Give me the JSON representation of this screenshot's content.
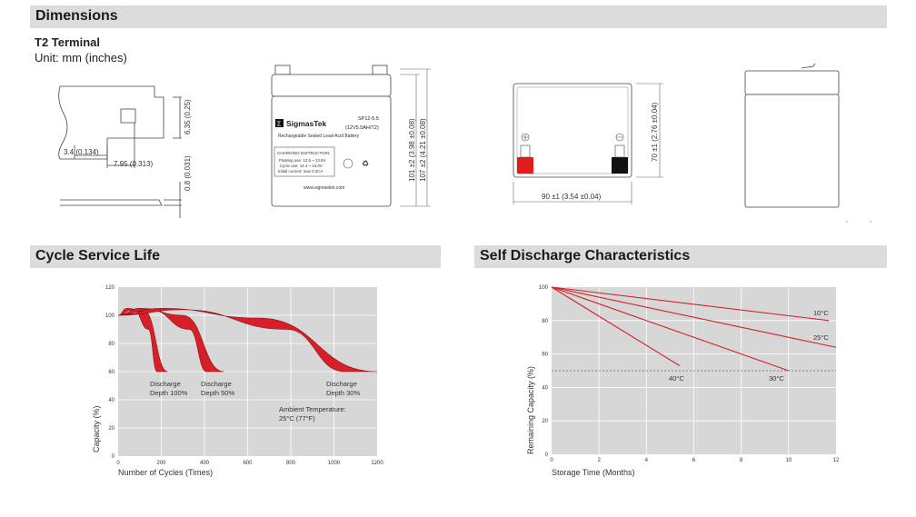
{
  "sections": {
    "dimensions": "Dimensions",
    "cycle": "Cycle Service Life",
    "self_discharge": "Self Discharge Characteristics"
  },
  "terminal": {
    "title": "T2 Terminal",
    "unit": "Unit: mm (inches)",
    "dim_a": "6.35 (0.25)",
    "dim_b": "3.4 (0.134)",
    "dim_c": "7.95 (0.313)",
    "dim_d": "0.8 (0.031)"
  },
  "battery": {
    "brand": "SigmasTek",
    "model": "SP12-5.5",
    "model_sub": "(12V5.5AH/T2)",
    "description": "Rechargeable Sealed Lead-Acid Battery",
    "charging_title": "CHARGING INSTRUCTION",
    "charging_1": "Floating use: 13.5 ~ 13.8V",
    "charging_2": "Cycle use: 14.4 ~ 15.0V",
    "charging_3": "Initial current: max 0.3CA",
    "website": "www.sigmastek.com",
    "height_1": "101 ±2 (3.98 ±0.08)",
    "height_2": "107 ±2 (4.21 ±0.08)",
    "width": "90 ±1 (3.54 ±0.04)",
    "depth": "70 ±1 (2.76 ±0.04)"
  },
  "cycle_chart": {
    "ylabel": "Capacity (%)",
    "xlabel": "Number of Cycles (Times)",
    "label_100": [
      "Discharge",
      "Depth 100%"
    ],
    "label_50": [
      "Discharge",
      "Depth 50%"
    ],
    "label_30": [
      "Discharge",
      "Depth 30%"
    ],
    "ambient": [
      "Ambient Temperature:",
      "25°C (77°F)"
    ]
  },
  "discharge_chart": {
    "ylabel": "Remaining Capacity (%)",
    "xlabel": "Storage Time (Months)",
    "labels": {
      "t10": "10°C",
      "t25": "25°C",
      "t30": "30°C",
      "t40": "40°C"
    }
  },
  "chart_data": [
    {
      "type": "area",
      "title": "Cycle Service Life",
      "xlabel": "Number of Cycles (Times)",
      "ylabel": "Capacity (%)",
      "xlim": [
        0,
        1200
      ],
      "ylim": [
        0,
        120
      ],
      "x_ticks": [
        0,
        200,
        400,
        600,
        800,
        1000,
        1200
      ],
      "y_ticks": [
        0,
        20,
        40,
        60,
        80,
        100,
        120
      ],
      "grid": true,
      "series": [
        {
          "name": "Discharge Depth 100%",
          "upper": [
            [
              0,
              100
            ],
            [
              40,
              105
            ],
            [
              120,
              103
            ],
            [
              230,
              60
            ]
          ],
          "lower": [
            [
              0,
              100
            ],
            [
              70,
              104
            ],
            [
              140,
              90
            ],
            [
              180,
              60
            ]
          ]
        },
        {
          "name": "Discharge Depth 50%",
          "upper": [
            [
              0,
              100
            ],
            [
              100,
              105
            ],
            [
              300,
              100
            ],
            [
              490,
              60
            ]
          ],
          "lower": [
            [
              0,
              100
            ],
            [
              150,
              104
            ],
            [
              330,
              90
            ],
            [
              410,
              60
            ]
          ]
        },
        {
          "name": "Discharge Depth 30%",
          "upper": [
            [
              0,
              100
            ],
            [
              200,
              105
            ],
            [
              650,
              98
            ],
            [
              1200,
              60
            ]
          ],
          "lower": [
            [
              0,
              100
            ],
            [
              300,
              104
            ],
            [
              780,
              90
            ],
            [
              1050,
              60
            ]
          ]
        }
      ],
      "annotations": [
        "Ambient Temperature:",
        "25°C (77°F)"
      ]
    },
    {
      "type": "line",
      "title": "Self Discharge Characteristics",
      "xlabel": "Storage Time (Months)",
      "ylabel": "Remaining Capacity (%)",
      "xlim": [
        0,
        12
      ],
      "ylim": [
        0,
        100
      ],
      "x_ticks": [
        0,
        2,
        4,
        6,
        8,
        10,
        12
      ],
      "y_ticks": [
        0,
        20,
        40,
        60,
        80,
        100
      ],
      "grid": true,
      "reference_line_y": 50,
      "series": [
        {
          "name": "10°C",
          "x": [
            0,
            11.7
          ],
          "y": [
            100,
            80
          ]
        },
        {
          "name": "25°C",
          "x": [
            0,
            12
          ],
          "y": [
            100,
            64
          ]
        },
        {
          "name": "30°C",
          "x": [
            0,
            10
          ],
          "y": [
            100,
            50
          ]
        },
        {
          "name": "40°C",
          "x": [
            0,
            5.4
          ],
          "y": [
            100,
            53
          ]
        }
      ]
    }
  ]
}
